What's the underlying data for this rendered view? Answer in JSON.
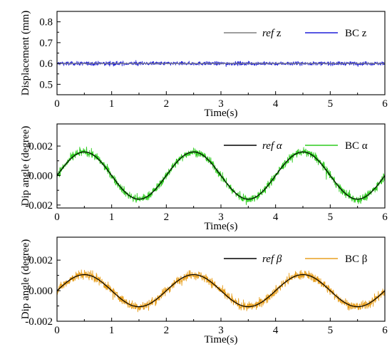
{
  "chart_data": [
    {
      "type": "line",
      "ylabel": "Displacement (mm)",
      "xlabel": "Time(s)",
      "xlim": [
        0,
        6
      ],
      "ylim": [
        0.45,
        0.85
      ],
      "xticks": [
        0,
        1,
        2,
        3,
        4,
        5,
        6
      ],
      "xtick_labels": [
        "0",
        "1",
        "2",
        "3",
        "4",
        "5",
        "6"
      ],
      "yticks": [
        0.5,
        0.6,
        0.7,
        0.8
      ],
      "ytick_labels": [
        "0.5",
        "0.6",
        "0.7",
        "0.8"
      ],
      "legend_position": "top-right",
      "series": [
        {
          "name": "ref z",
          "legend_italic": "ref",
          "legend_rest": " z",
          "color": "#7f7f7f",
          "kind": "constant",
          "value": 0.6
        },
        {
          "name": "BC z",
          "legend_italic": "",
          "legend_rest": "BC z",
          "color": "#1f1fd8",
          "kind": "noisy-constant",
          "value": 0.6,
          "noise": 0.009
        }
      ]
    },
    {
      "type": "line",
      "ylabel": "Dip angle (degree)",
      "xlabel": "Time(s)",
      "xlim": [
        0,
        6
      ],
      "ylim": [
        -0.0022,
        0.0035
      ],
      "xticks": [
        0,
        1,
        2,
        3,
        4,
        5,
        6
      ],
      "xtick_labels": [
        "0",
        "1",
        "2",
        "3",
        "4",
        "5",
        "6"
      ],
      "yticks": [
        -0.002,
        0.0,
        0.002
      ],
      "ytick_labels": [
        "-0.002",
        "0.000",
        "0.002"
      ],
      "legend_position": "top-right",
      "series": [
        {
          "name": "ref α",
          "legend_italic": "ref α",
          "legend_rest": "",
          "color": "#000000",
          "kind": "sine",
          "amplitude": 0.0016,
          "period": 2
        },
        {
          "name": "BC α",
          "legend_italic": "",
          "legend_rest": "BC α",
          "color": "#2ecc1f",
          "kind": "noisy-sine",
          "amplitude": 0.0016,
          "period": 2,
          "noise": 0.00028
        }
      ]
    },
    {
      "type": "line",
      "ylabel": "Dip angle (degree)",
      "xlabel": "Time(s)",
      "xlim": [
        0,
        6
      ],
      "ylim": [
        -0.002,
        0.0035
      ],
      "xticks": [
        0,
        1,
        2,
        3,
        4,
        5,
        6
      ],
      "xtick_labels": [
        "0",
        "1",
        "2",
        "3",
        "4",
        "5",
        "6"
      ],
      "yticks": [
        -0.002,
        0.0,
        0.002
      ],
      "ytick_labels": [
        "-0.002",
        "0.000",
        "0.002"
      ],
      "legend_position": "top-right",
      "series": [
        {
          "name": "ref β",
          "legend_italic": "ref β",
          "legend_rest": "",
          "color": "#000000",
          "kind": "sine",
          "amplitude": 0.00105,
          "period": 2
        },
        {
          "name": "BC β",
          "legend_italic": "",
          "legend_rest": "BC β",
          "color": "#e8a020",
          "kind": "noisy-sine",
          "amplitude": 0.00105,
          "period": 2,
          "noise": 0.0003
        }
      ]
    }
  ]
}
